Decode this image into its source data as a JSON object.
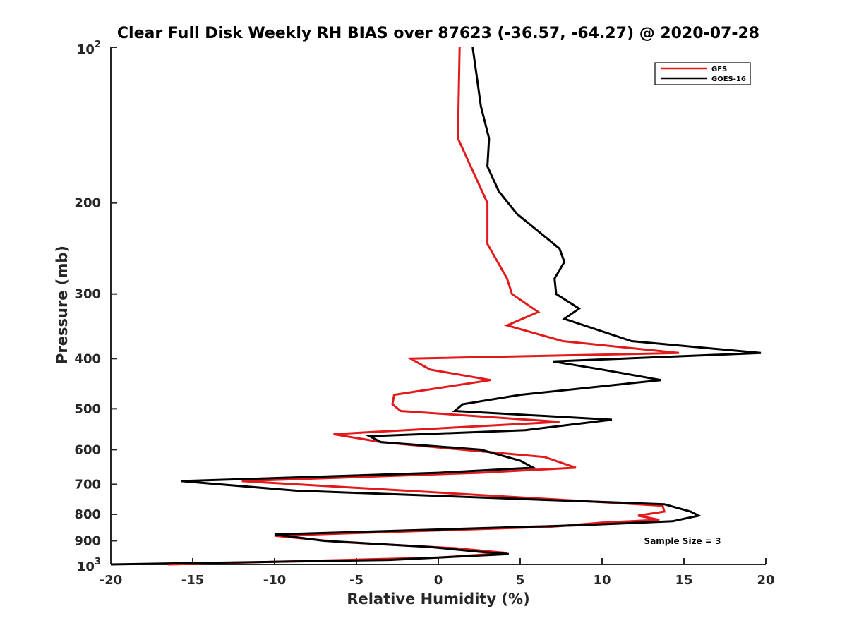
{
  "chart_data": {
    "type": "line",
    "title": "Clear Full Disk Weekly RH BIAS over 87623 (-36.57, -64.27) @ 2020-07-28",
    "xlabel": "Relative Humidity (%)",
    "ylabel": "Pressure (mb)",
    "xlim": [
      -20,
      20
    ],
    "ylim": [
      100,
      1000
    ],
    "y_scale": "log",
    "y_reversed": true,
    "x_ticks": [
      "-20",
      "-15",
      "-10",
      "-5",
      "0",
      "5",
      "10",
      "15",
      "20"
    ],
    "x_tick_values": [
      -20,
      -15,
      -10,
      -5,
      0,
      5,
      10,
      15,
      20
    ],
    "y_tick_values": [
      100,
      200,
      300,
      400,
      500,
      600,
      700,
      800,
      900,
      1000
    ],
    "y_ticks": [
      "200",
      "300",
      "400",
      "500",
      "600",
      "700",
      "800",
      "900"
    ],
    "y_tick_top": {
      "base": "10",
      "exp": "2"
    },
    "y_tick_bottom": {
      "base": "10",
      "exp": "3"
    },
    "grid": false,
    "legend_position": "top-right",
    "annotation": "Sample Size = 3",
    "series": [
      {
        "name": "GFS",
        "color": "#e31a1c",
        "points": [
          [
            1.3,
            100
          ],
          [
            1.2,
            150
          ],
          [
            3.0,
            200
          ],
          [
            3.0,
            240
          ],
          [
            4.2,
            280
          ],
          [
            4.5,
            300
          ],
          [
            6.1,
            325
          ],
          [
            4.2,
            345
          ],
          [
            7.6,
            370
          ],
          [
            14.7,
            390
          ],
          [
            -1.7,
            400
          ],
          [
            -0.5,
            420
          ],
          [
            3.2,
            440
          ],
          [
            -2.7,
            470
          ],
          [
            -2.8,
            490
          ],
          [
            -2.3,
            505
          ],
          [
            7.4,
            530
          ],
          [
            -2.0,
            550
          ],
          [
            -6.4,
            560
          ],
          [
            -3.5,
            580
          ],
          [
            1.5,
            600
          ],
          [
            6.5,
            620
          ],
          [
            8.4,
            650
          ],
          [
            2.5,
            665
          ],
          [
            -12.0,
            690
          ],
          [
            -2.0,
            720
          ],
          [
            13.7,
            770
          ],
          [
            13.8,
            790
          ],
          [
            12.2,
            805
          ],
          [
            13.5,
            820
          ],
          [
            10.0,
            830
          ],
          [
            7.0,
            845
          ],
          [
            -10.0,
            880
          ],
          [
            -6.0,
            905
          ],
          [
            1.0,
            930
          ],
          [
            4.2,
            950
          ],
          [
            0.0,
            970
          ],
          [
            -16.5,
            1000
          ]
        ]
      },
      {
        "name": "GOES-16",
        "color": "#000000",
        "points": [
          [
            2.1,
            100
          ],
          [
            2.6,
            130
          ],
          [
            3.1,
            150
          ],
          [
            3.0,
            170
          ],
          [
            3.7,
            190
          ],
          [
            4.8,
            210
          ],
          [
            7.4,
            245
          ],
          [
            7.7,
            260
          ],
          [
            7.1,
            280
          ],
          [
            7.2,
            300
          ],
          [
            8.6,
            320
          ],
          [
            7.7,
            335
          ],
          [
            11.8,
            370
          ],
          [
            19.7,
            390
          ],
          [
            7.0,
            405
          ],
          [
            10.0,
            420
          ],
          [
            13.6,
            440
          ],
          [
            5.0,
            470
          ],
          [
            1.5,
            490
          ],
          [
            1.0,
            505
          ],
          [
            10.6,
            525
          ],
          [
            5.3,
            550
          ],
          [
            -4.2,
            565
          ],
          [
            -3.5,
            580
          ],
          [
            2.6,
            600
          ],
          [
            5.0,
            630
          ],
          [
            5.8,
            650
          ],
          [
            0.0,
            665
          ],
          [
            -15.7,
            690
          ],
          [
            -8.7,
            720
          ],
          [
            13.8,
            765
          ],
          [
            15.4,
            790
          ],
          [
            15.9,
            805
          ],
          [
            14.3,
            825
          ],
          [
            8.5,
            840
          ],
          [
            -10.0,
            875
          ],
          [
            -7.0,
            900
          ],
          [
            -0.5,
            925
          ],
          [
            2.5,
            945
          ],
          [
            4.3,
            955
          ],
          [
            -3.0,
            980
          ],
          [
            -20.0,
            1000
          ]
        ]
      }
    ]
  }
}
